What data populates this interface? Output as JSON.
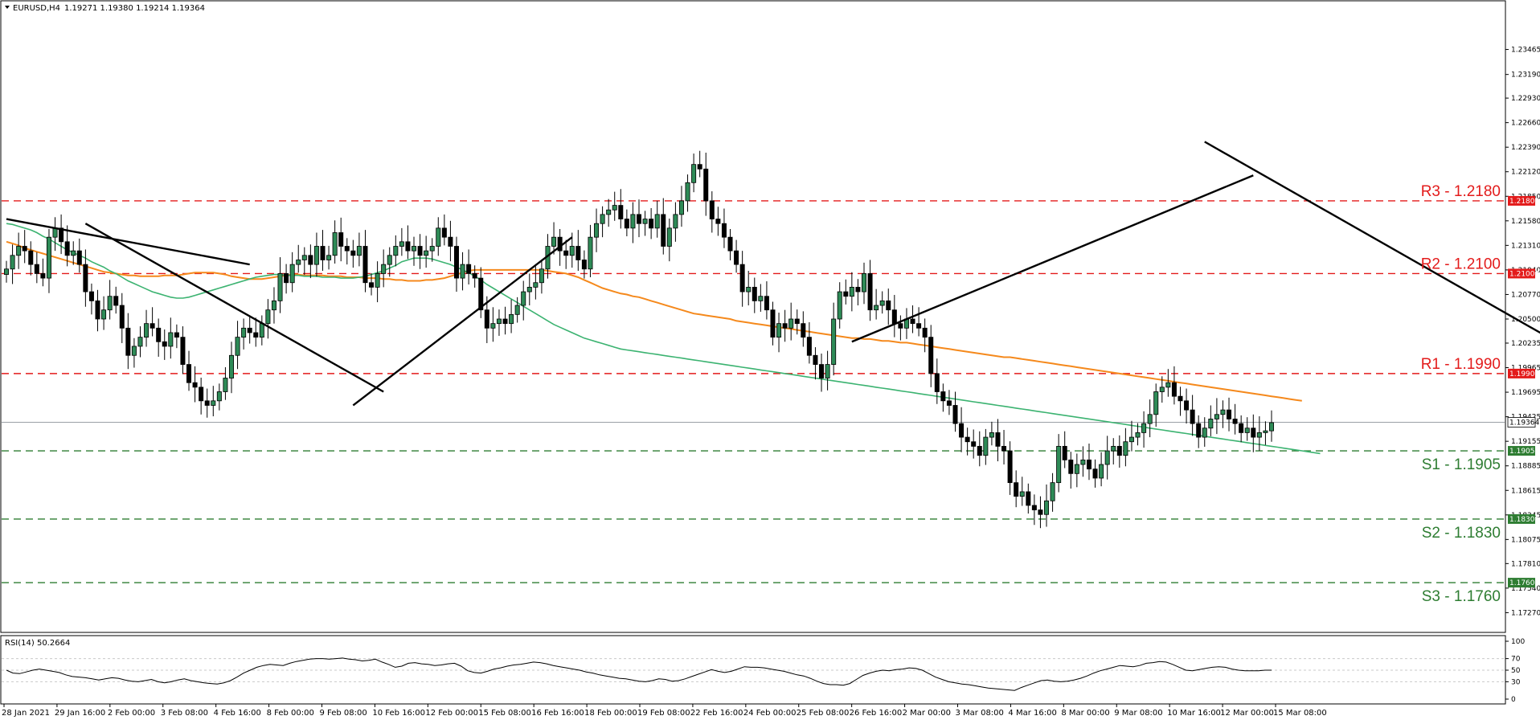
{
  "header": {
    "symbol": "EURUSD,H4",
    "ohlc": "1.19271 1.19380 1.19214 1.19364"
  },
  "rsi": {
    "label": "RSI(14) 50.2664",
    "ticks": [
      "100",
      "70",
      "50",
      "30",
      "0"
    ]
  },
  "current_price_tag": "1.19364",
  "chart_data": {
    "type": "candlestick",
    "ylim": [
      1.1715,
      1.2385
    ],
    "y_ticks": [
      "1.23465",
      "1.23190",
      "1.22930",
      "1.22660",
      "1.22390",
      "1.22120",
      "1.21850",
      "1.21580",
      "1.21310",
      "1.21040",
      "1.20770",
      "1.20500",
      "1.20235",
      "1.19965",
      "1.19695",
      "1.19425",
      "1.19155",
      "1.18885",
      "1.18615",
      "1.18345",
      "1.18075",
      "1.17810",
      "1.17540",
      "1.17270"
    ],
    "x_ticks": [
      "28 Jan 2021",
      "29 Jan 16:00",
      "2 Feb 00:00",
      "3 Feb 08:00",
      "4 Feb 16:00",
      "8 Feb 00:00",
      "9 Feb 08:00",
      "10 Feb 16:00",
      "12 Feb 00:00",
      "15 Feb 08:00",
      "16 Feb 16:00",
      "18 Feb 00:00",
      "19 Feb 08:00",
      "22 Feb 16:00",
      "24 Feb 00:00",
      "25 Feb 08:00",
      "26 Feb 16:00",
      "2 Mar 00:00",
      "3 Mar 08:00",
      "4 Mar 16:00",
      "8 Mar 00:00",
      "9 Mar 08:00",
      "10 Mar 16:00",
      "12 Mar 00:00",
      "15 Mar 08:00"
    ],
    "levels": [
      {
        "label": "R3 - 1.2180",
        "tag": "1.21800",
        "value": 1.218,
        "kind": "resistance",
        "color": "#e31b1b"
      },
      {
        "label": "R2 - 1.2100",
        "tag": "1.21000",
        "value": 1.21,
        "kind": "resistance",
        "color": "#e31b1b"
      },
      {
        "label": "R1 - 1.1990",
        "tag": "1.19900",
        "value": 1.199,
        "kind": "resistance",
        "color": "#e31b1b"
      },
      {
        "label": "S1 - 1.1905",
        "tag": "1.19050",
        "value": 1.1905,
        "kind": "support",
        "color": "#2e7d32"
      },
      {
        "label": "S2 - 1.1830",
        "tag": "1.18300",
        "value": 1.183,
        "kind": "support",
        "color": "#2e7d32"
      },
      {
        "label": "S3 - 1.1760",
        "tag": "1.17600",
        "value": 1.176,
        "kind": "support",
        "color": "#2e7d32"
      }
    ],
    "current_price": 1.19364,
    "closes": [
      1.2105,
      1.212,
      1.213,
      1.2125,
      1.211,
      1.21,
      1.2095,
      1.214,
      1.215,
      1.2135,
      1.212,
      1.2125,
      1.211,
      1.208,
      1.207,
      1.205,
      1.206,
      1.2075,
      1.2065,
      1.204,
      1.201,
      1.202,
      1.203,
      1.2045,
      1.204,
      1.2025,
      1.202,
      1.2035,
      1.203,
      1.2,
      1.198,
      1.1975,
      1.196,
      1.1955,
      1.196,
      1.197,
      1.1985,
      1.201,
      1.203,
      1.204,
      1.2035,
      1.203,
      1.2045,
      1.206,
      1.207,
      1.21,
      1.209,
      1.211,
      1.2115,
      1.212,
      1.211,
      1.213,
      1.2115,
      1.212,
      1.2145,
      1.213,
      1.2125,
      1.212,
      1.213,
      1.209,
      1.2085,
      1.21,
      1.211,
      1.212,
      1.213,
      1.2135,
      1.2125,
      1.213,
      1.212,
      1.2125,
      1.213,
      1.215,
      1.214,
      1.213,
      1.2095,
      1.211,
      1.21,
      1.2095,
      1.206,
      1.204,
      1.2045,
      1.205,
      1.2045,
      1.2055,
      1.2065,
      1.208,
      1.2085,
      1.209,
      1.2105,
      1.213,
      1.214,
      1.2125,
      1.212,
      1.213,
      1.2115,
      1.2105,
      1.214,
      1.2155,
      1.2165,
      1.217,
      1.2175,
      1.216,
      1.215,
      1.2165,
      1.2155,
      1.216,
      1.215,
      1.2165,
      1.213,
      1.215,
      1.2165,
      1.218,
      1.22,
      1.222,
      1.2215,
      1.218,
      1.216,
      1.2155,
      1.214,
      1.2125,
      1.211,
      1.208,
      1.2085,
      1.207,
      1.2075,
      1.206,
      1.203,
      1.2045,
      1.204,
      1.205,
      1.2045,
      1.203,
      1.201,
      1.2,
      1.1985,
      1.2,
      1.205,
      1.208,
      1.2075,
      1.2085,
      1.208,
      1.21,
      1.206,
      1.2065,
      1.207,
      1.206,
      1.2045,
      1.204,
      1.205,
      1.2045,
      1.204,
      1.203,
      1.199,
      1.197,
      1.196,
      1.1955,
      1.1935,
      1.192,
      1.1915,
      1.191,
      1.19,
      1.192,
      1.1925,
      1.191,
      1.1905,
      1.187,
      1.1855,
      1.186,
      1.1845,
      1.184,
      1.1835,
      1.185,
      1.187,
      1.191,
      1.1895,
      1.188,
      1.189,
      1.1895,
      1.1885,
      1.1875,
      1.189,
      1.1905,
      1.191,
      1.19,
      1.1915,
      1.192,
      1.1925,
      1.1935,
      1.1945,
      1.197,
      1.1975,
      1.198,
      1.1965,
      1.196,
      1.195,
      1.1935,
      1.192,
      1.193,
      1.194,
      1.1945,
      1.195,
      1.194,
      1.1935,
      1.1925,
      1.193,
      1.192,
      1.1925,
      1.1927,
      1.1936
    ],
    "ma_slow": [
      1.2135,
      1.2133,
      1.2131,
      1.2128,
      1.2126,
      1.2124,
      1.2122,
      1.212,
      1.2118,
      1.2116,
      1.2114,
      1.2112,
      1.211,
      1.2108,
      1.2106,
      1.2104,
      1.2102,
      1.2101,
      1.21,
      1.2099,
      1.2098,
      1.2098,
      1.2097,
      1.2097,
      1.2097,
      1.2097,
      1.2098,
      1.2098,
      1.2098,
      1.2099,
      1.21,
      1.2101,
      1.2101,
      1.2101,
      1.2101,
      1.21,
      1.2099,
      1.2097,
      1.2096,
      1.2095,
      1.2094,
      1.2094,
      1.2094,
      1.2095,
      1.2096,
      1.2097,
      1.2098,
      1.2099,
      1.2099,
      1.2098,
      1.2098,
      1.2098,
      1.2098,
      1.2097,
      1.2097,
      1.2097,
      1.2096,
      1.2096,
      1.2096,
      1.2095,
      1.2095,
      1.2095,
      1.2094,
      1.2094,
      1.2093,
      1.2093,
      1.2092,
      1.2092,
      1.2092,
      1.2093,
      1.2093,
      1.2094,
      1.2095,
      1.2097,
      1.2099,
      1.2101,
      1.2103,
      1.2104,
      1.2104,
      1.2104,
      1.2104,
      1.2104,
      1.2104,
      1.2104,
      1.2104,
      1.2104,
      1.2104,
      1.2104,
      1.2104,
      1.2103,
      1.2102,
      1.2101,
      1.21,
      1.2098,
      1.2096,
      1.2093,
      1.209,
      1.2087,
      1.2084,
      1.2082,
      1.208,
      1.2078,
      1.2077,
      1.2075,
      1.2074,
      1.2072,
      1.207,
      1.2068,
      1.2066,
      1.2064,
      1.2062,
      1.206,
      1.2058,
      1.2056,
      1.2055,
      1.2054,
      1.2053,
      1.2052,
      1.2051,
      1.205,
      1.2048,
      1.2047,
      1.2046,
      1.2045,
      1.2044,
      1.2043,
      1.2042,
      1.2041,
      1.204,
      1.2039,
      1.2038,
      1.2037,
      1.2036,
      1.2035,
      1.2034,
      1.2033,
      1.2032,
      1.2031,
      1.203,
      1.2029,
      1.2029,
      1.2028,
      1.2028,
      1.2027,
      1.2026,
      1.2026,
      1.2025,
      1.2024,
      1.2024,
      1.2023,
      1.2022,
      1.2021,
      1.202,
      1.2019,
      1.2018,
      1.2017,
      1.2016,
      1.2015,
      1.2014,
      1.2013,
      1.2012,
      1.2011,
      1.201,
      1.2009,
      1.2008,
      1.2008,
      1.2007,
      1.2006,
      1.2005,
      1.2004,
      1.2003,
      1.2002,
      1.2001,
      1.2,
      1.1999,
      1.1998,
      1.1997,
      1.1996,
      1.1995,
      1.1994,
      1.1993,
      1.1992,
      1.1991,
      1.199,
      1.1989,
      1.1988,
      1.1987,
      1.1986,
      1.1985,
      1.1984,
      1.1983,
      1.1982,
      1.1981,
      1.198,
      1.1979,
      1.1978,
      1.1977,
      1.1976,
      1.1975,
      1.1974,
      1.1973,
      1.1972,
      1.1971,
      1.197,
      1.1969,
      1.1968,
      1.1967,
      1.1966,
      1.1965,
      1.1964,
      1.1963,
      1.1962,
      1.1961,
      1.196
    ],
    "ma_fast": [
      1.2155,
      1.2154,
      1.2152,
      1.215,
      1.2148,
      1.2145,
      1.2141,
      1.2138,
      1.2134,
      1.213,
      1.2126,
      1.2123,
      1.212,
      1.2117,
      1.2113,
      1.211,
      1.2107,
      1.2103,
      1.21,
      1.2096,
      1.2092,
      1.2089,
      1.2086,
      1.2083,
      1.208,
      1.2078,
      1.2076,
      1.2074,
      1.2073,
      1.2073,
      1.2074,
      1.2076,
      1.2078,
      1.208,
      1.2082,
      1.2084,
      1.2086,
      1.2088,
      1.209,
      1.2092,
      1.2094,
      1.2096,
      1.2097,
      1.2098,
      1.2099,
      1.2099,
      1.2098,
      1.2098,
      1.2098,
      1.2097,
      1.2097,
      1.2097,
      1.2096,
      1.2096,
      1.2096,
      1.2095,
      1.2095,
      1.2095,
      1.2096,
      1.2097,
      1.2099,
      1.2101,
      1.2103,
      1.2106,
      1.2109,
      1.2113,
      1.2115,
      1.2117,
      1.2117,
      1.2117,
      1.2116,
      1.2114,
      1.2112,
      1.211,
      1.2107,
      1.2104,
      1.2101,
      1.2097,
      1.2093,
      1.2088,
      1.2084,
      1.208,
      1.2076,
      1.2072,
      1.2068,
      1.2064,
      1.206,
      1.2056,
      1.2052,
      1.2048,
      1.2044,
      1.2041,
      1.2038,
      1.2035,
      1.2032,
      1.2029,
      1.2027,
      1.2025,
      1.2023,
      1.2021,
      1.2019,
      1.2017,
      1.2016,
      1.2015,
      1.2014,
      1.2013,
      1.2012,
      1.2011,
      1.201,
      1.2009,
      1.2008,
      1.2007,
      1.2006,
      1.2005,
      1.2004,
      1.2003,
      1.2002,
      1.2001,
      1.2,
      1.1999,
      1.1998,
      1.1997,
      1.1996,
      1.1995,
      1.1994,
      1.1993,
      1.1992,
      1.1991,
      1.199,
      1.1989,
      1.1988,
      1.1987,
      1.1986,
      1.1985,
      1.1984,
      1.1983,
      1.1982,
      1.1981,
      1.198,
      1.1979,
      1.1978,
      1.1977,
      1.1976,
      1.1975,
      1.1974,
      1.1973,
      1.1972,
      1.1971,
      1.197,
      1.1969,
      1.1968,
      1.1967,
      1.1966,
      1.1965,
      1.1964,
      1.1963,
      1.1962,
      1.1961,
      1.196,
      1.1959,
      1.1958,
      1.1957,
      1.1956,
      1.1955,
      1.1954,
      1.1953,
      1.1952,
      1.1951,
      1.195,
      1.1949,
      1.1948,
      1.1947,
      1.1946,
      1.1945,
      1.1944,
      1.1943,
      1.1942,
      1.1941,
      1.194,
      1.1939,
      1.1938,
      1.1937,
      1.1936,
      1.1935,
      1.1934,
      1.1933,
      1.1932,
      1.1931,
      1.193,
      1.1929,
      1.1928,
      1.1927,
      1.1926,
      1.1925,
      1.1924,
      1.1923,
      1.1922,
      1.1921,
      1.192,
      1.1919,
      1.1918,
      1.1917,
      1.1916,
      1.1915,
      1.1914,
      1.1913,
      1.1912,
      1.1911,
      1.191,
      1.1909,
      1.1908,
      1.1907,
      1.1906,
      1.1905,
      1.1904,
      1.1903,
      1.1902
    ],
    "trendlines": [
      {
        "from": [
          0,
          1.216
        ],
        "to": [
          40,
          1.211
        ]
      },
      {
        "from": [
          13,
          1.2155
        ],
        "to": [
          62,
          1.197
        ]
      },
      {
        "from": [
          57,
          1.1955
        ],
        "to": [
          93,
          1.214
        ]
      },
      {
        "from": [
          139,
          1.2025
        ],
        "to": [
          205,
          1.2208
        ]
      },
      {
        "from": [
          197,
          1.2245
        ],
        "to": [
          306,
          1.183
        ]
      }
    ],
    "rsi_values": [
      50,
      45,
      44,
      47,
      50,
      52,
      50,
      48,
      46,
      42,
      39,
      38,
      37,
      35,
      33,
      35,
      37,
      36,
      33,
      31,
      30,
      32,
      34,
      30,
      28,
      30,
      33,
      35,
      32,
      30,
      28,
      27,
      26,
      28,
      32,
      38,
      45,
      50,
      55,
      58,
      60,
      59,
      58,
      62,
      65,
      67,
      69,
      70,
      70,
      69,
      70,
      71,
      69,
      68,
      66,
      67,
      69,
      64,
      60,
      55,
      57,
      62,
      63,
      61,
      60,
      58,
      59,
      61,
      62,
      57,
      49,
      46,
      45,
      48,
      52,
      54,
      57,
      59,
      60,
      62,
      64,
      63,
      61,
      58,
      56,
      54,
      52,
      50,
      47,
      45,
      42,
      40,
      38,
      36,
      35,
      33,
      31,
      30,
      32,
      35,
      34,
      31,
      32,
      35,
      39,
      43,
      47,
      51,
      48,
      46,
      48,
      52,
      56,
      55,
      55,
      54,
      52,
      50,
      48,
      45,
      42,
      40,
      36,
      31,
      27,
      25,
      25,
      24,
      27,
      34,
      41,
      45,
      48,
      50,
      49,
      51,
      52,
      54,
      53,
      50,
      44,
      38,
      34,
      30,
      28,
      26,
      25,
      23,
      21,
      19,
      18,
      17,
      16,
      15,
      20,
      24,
      28,
      32,
      33,
      31,
      30,
      31,
      33,
      36,
      40,
      45,
      49,
      52,
      55,
      58,
      57,
      56,
      58,
      62,
      63,
      65,
      64,
      60,
      55,
      50,
      49,
      51,
      53,
      55,
      56,
      55,
      52,
      50,
      49,
      49,
      49,
      50,
      50
    ]
  }
}
